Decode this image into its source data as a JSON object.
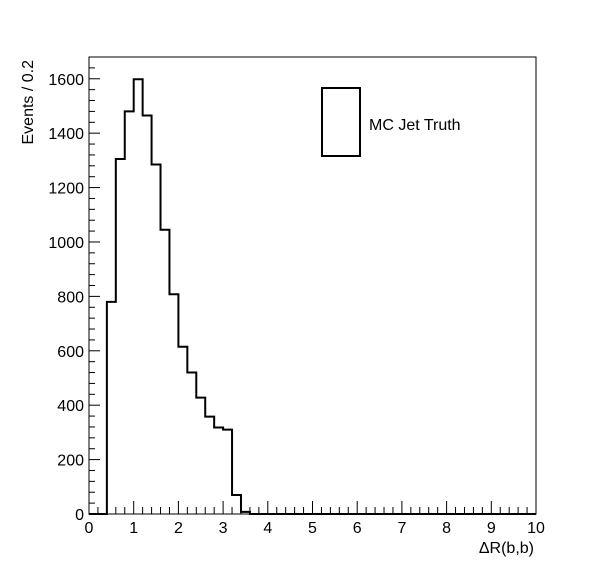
{
  "chart_data": {
    "type": "histogram",
    "xlabel": "ΔR(b,b)",
    "ylabel": "Events / 0.2",
    "xlim": [
      0,
      10
    ],
    "ylim": [
      0,
      1680
    ],
    "bin_width": 0.2,
    "bin_edges_start": 0,
    "values": [
      0,
      0,
      780,
      1305,
      1480,
      1598,
      1465,
      1285,
      1045,
      808,
      615,
      520,
      428,
      358,
      318,
      310,
      70,
      8,
      0,
      0,
      0,
      0,
      0,
      0,
      0,
      0,
      0,
      0,
      0,
      0,
      0,
      0,
      0,
      0,
      0,
      0,
      0,
      0,
      0,
      0,
      0,
      0,
      0,
      0,
      0,
      0,
      0,
      0,
      0,
      0
    ],
    "x_ticks": [
      "0",
      "1",
      "2",
      "3",
      "4",
      "5",
      "6",
      "7",
      "8",
      "9",
      "10"
    ],
    "y_ticks": [
      "0",
      "200",
      "400",
      "600",
      "800",
      "1000",
      "1200",
      "1400",
      "1600"
    ],
    "legend": {
      "placement": "top-right",
      "entries": [
        {
          "label": "MC Jet Truth",
          "color": "#000000"
        }
      ]
    },
    "grid": false,
    "line_color": "#000000"
  }
}
